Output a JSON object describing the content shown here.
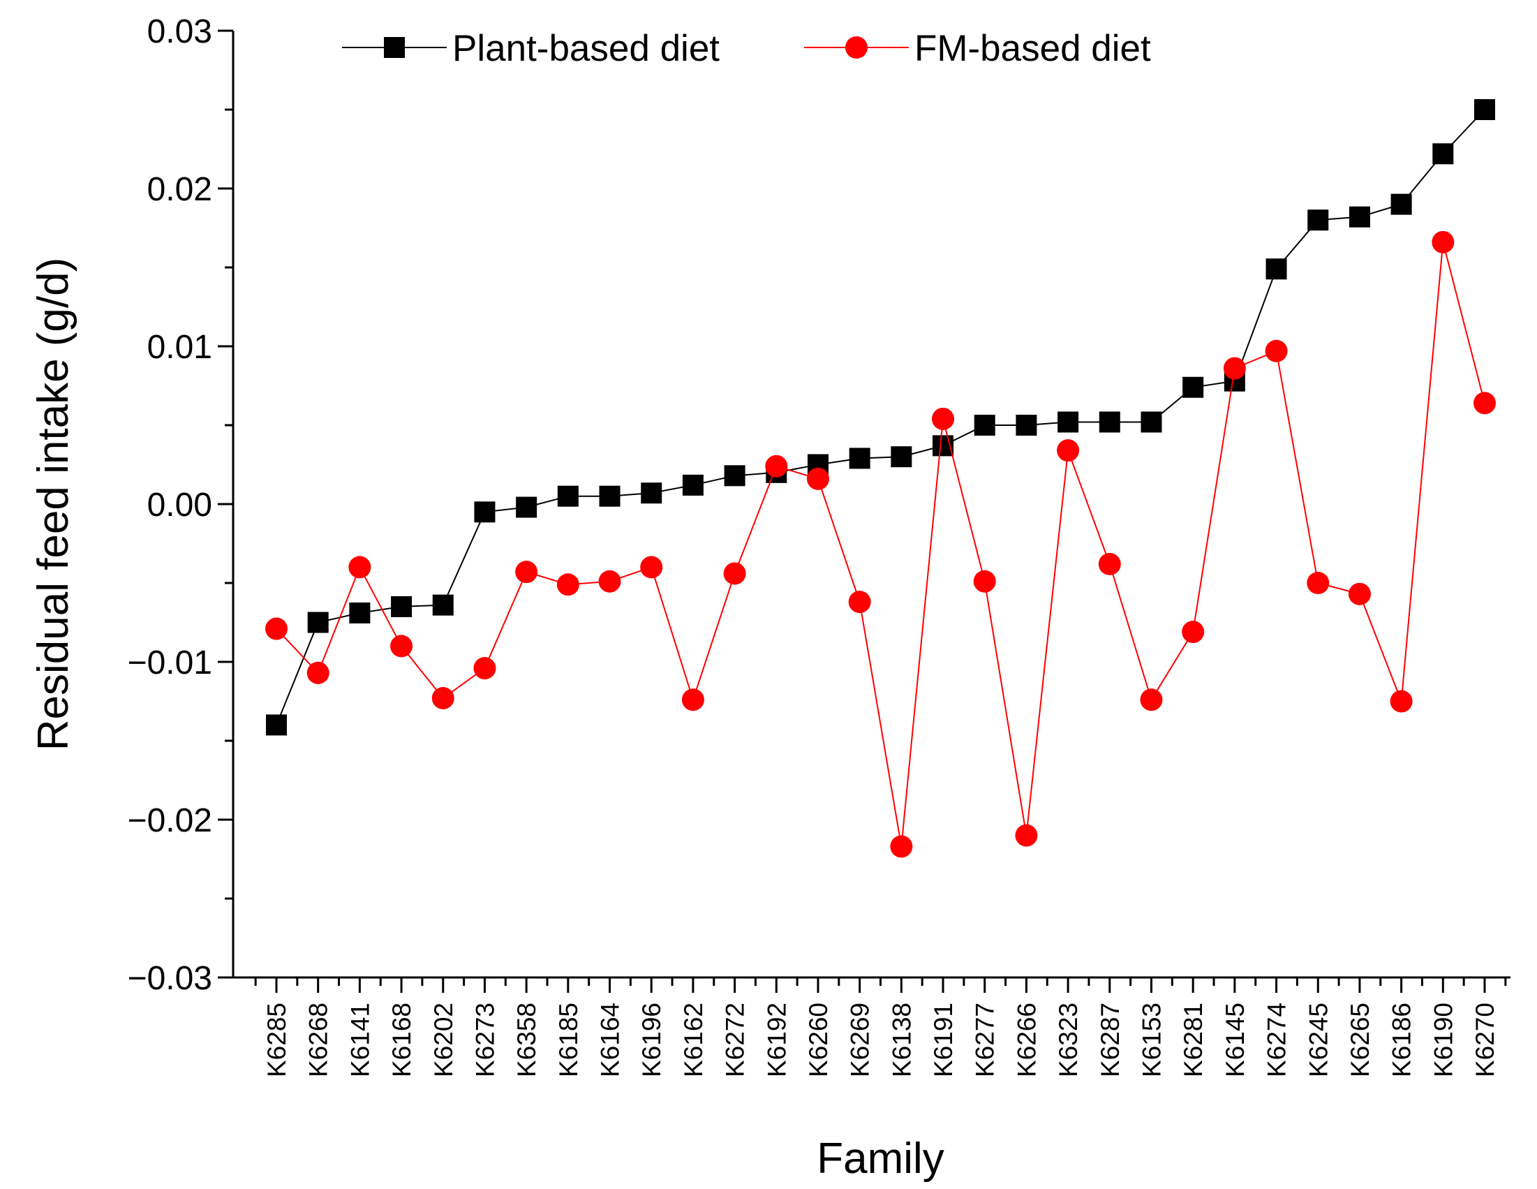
{
  "chart_data": {
    "type": "line",
    "title": "",
    "xlabel": "Family",
    "ylabel": "Residual feed intake (g/d)",
    "ylim": [
      -0.03,
      0.03
    ],
    "yticks": [
      "0.03",
      "0.02",
      "0.01",
      "0.00",
      "−0.01",
      "−0.02",
      "−0.03"
    ],
    "ytick_values": [
      0.03,
      0.02,
      0.01,
      0.0,
      -0.01,
      -0.02,
      -0.03
    ],
    "grid": false,
    "legend": "top",
    "categories": [
      "K6285",
      "K6268",
      "K6141",
      "K6168",
      "K6202",
      "K6273",
      "K6358",
      "K6185",
      "K6164",
      "K6196",
      "K6162",
      "K6272",
      "K6192",
      "K6260",
      "K6269",
      "K6138",
      "K6191",
      "K6277",
      "K6266",
      "K6323",
      "K6287",
      "K6153",
      "K6281",
      "K6145",
      "K6274",
      "K6245",
      "K6265",
      "K6186",
      "K6190",
      "K6270"
    ],
    "series": [
      {
        "name": "Plant-based diet",
        "color": "#000000",
        "marker": "square",
        "values": [
          -0.014,
          -0.0075,
          -0.0069,
          -0.0065,
          -0.0064,
          -0.0005,
          -0.0002,
          0.0005,
          0.0005,
          0.0007,
          0.0012,
          0.0018,
          0.002,
          0.0025,
          0.0029,
          0.003,
          0.0037,
          0.005,
          0.005,
          0.0052,
          0.0052,
          0.0052,
          0.0074,
          0.0078,
          0.0149,
          0.018,
          0.0182,
          0.019,
          0.0222,
          0.025
        ]
      },
      {
        "name": "FM-based diet",
        "color": "#ff0000",
        "marker": "circle",
        "values": [
          -0.0079,
          -0.0107,
          -0.004,
          -0.009,
          -0.0123,
          -0.0104,
          -0.0043,
          -0.0051,
          -0.0049,
          -0.004,
          -0.0124,
          -0.0044,
          0.0024,
          0.0016,
          -0.0062,
          -0.0217,
          0.0054,
          -0.0049,
          -0.021,
          0.0034,
          -0.0038,
          -0.0124,
          -0.0081,
          0.0086,
          0.0097,
          -0.005,
          -0.0057,
          -0.0125,
          0.0166,
          0.0064
        ]
      }
    ]
  }
}
